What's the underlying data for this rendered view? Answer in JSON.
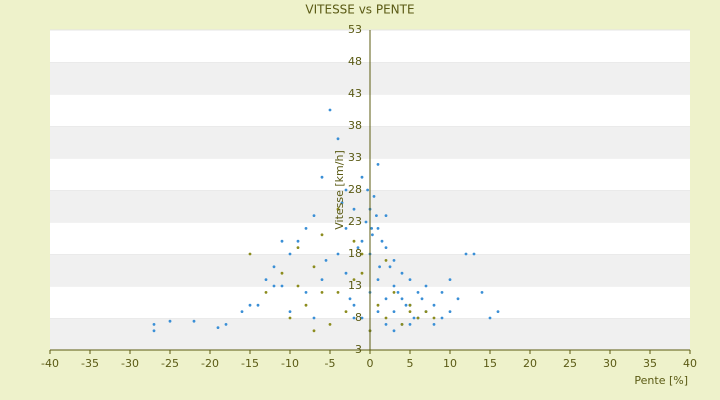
{
  "chart_data": {
    "type": "scatter",
    "title": "VITESSE vs PENTE",
    "x_label": "Pente [%]",
    "y_label": "Vitesse [km/h]",
    "xlim": [
      -40,
      40
    ],
    "xticks": [
      -40,
      -35,
      -30,
      -25,
      -20,
      -15,
      -10,
      -5,
      0,
      5,
      10,
      15,
      20,
      25,
      30,
      35,
      40
    ],
    "ylim": [
      3,
      53
    ],
    "yticks": [
      3,
      8,
      13,
      18,
      23,
      28,
      33,
      38,
      43,
      48,
      53
    ],
    "grid": true,
    "series": [
      {
        "color": "#3a8fd6",
        "x": [
          -27,
          -27,
          -25,
          -22,
          -19,
          -18,
          -16,
          -15,
          -13,
          -12,
          -11,
          -10,
          -9,
          -8,
          -7,
          -6,
          -5,
          -5.5,
          -4,
          -3,
          -3,
          -2,
          -2,
          -1,
          -1,
          -1,
          0,
          0,
          0,
          0,
          1,
          1,
          1,
          1,
          2,
          2,
          2,
          2,
          3,
          3,
          3,
          3,
          4,
          4,
          4,
          5,
          5,
          5,
          6,
          6,
          7,
          7,
          8,
          8,
          9,
          9,
          10,
          10,
          11,
          12,
          13,
          14,
          15,
          16,
          -4,
          -3,
          -2,
          -6,
          -8,
          -10,
          0.5,
          1.5,
          2.5,
          3.5,
          -0.5,
          -1.5,
          -2.5,
          4.5,
          5.5,
          6.5,
          -12,
          -14,
          -11,
          -7,
          -3.5,
          0.3,
          0.8,
          1.2,
          -0.3,
          0.2
        ],
        "values": [
          7,
          6,
          7.5,
          7.5,
          6.5,
          7,
          9,
          10,
          14,
          16,
          13,
          18,
          20,
          22,
          24,
          30,
          40.5,
          17,
          36,
          28,
          15,
          25,
          10,
          30,
          20,
          8,
          25,
          18,
          12,
          6,
          22,
          14,
          9,
          32,
          19,
          11,
          7,
          24,
          17,
          13,
          9,
          6,
          15,
          11,
          7,
          14,
          10,
          7,
          12,
          8,
          13,
          9,
          10,
          7,
          12,
          8,
          14,
          9,
          11,
          18,
          18,
          12,
          8,
          9,
          18,
          22,
          8,
          14,
          12,
          9,
          27,
          20,
          16,
          12,
          23,
          19,
          11,
          10,
          8,
          11,
          13,
          10,
          20,
          8,
          26,
          21,
          24,
          16,
          28,
          22
        ]
      },
      {
        "color": "#8c8c1e",
        "x": [
          -15,
          -13,
          -11,
          -10,
          -9,
          -8,
          -7,
          -6,
          -5,
          -4,
          -3,
          -2,
          -1,
          0,
          1,
          2,
          3,
          4,
          5,
          6,
          7,
          8,
          -6,
          -4,
          -2,
          -1,
          2,
          5,
          -7,
          -9
        ],
        "values": [
          18,
          12,
          15,
          8,
          13,
          10,
          16,
          21,
          7,
          12,
          9,
          14,
          18,
          6,
          10,
          8,
          12,
          7,
          9,
          8,
          9,
          8,
          12,
          25,
          20,
          15,
          17,
          10,
          6,
          19
        ]
      }
    ]
  }
}
